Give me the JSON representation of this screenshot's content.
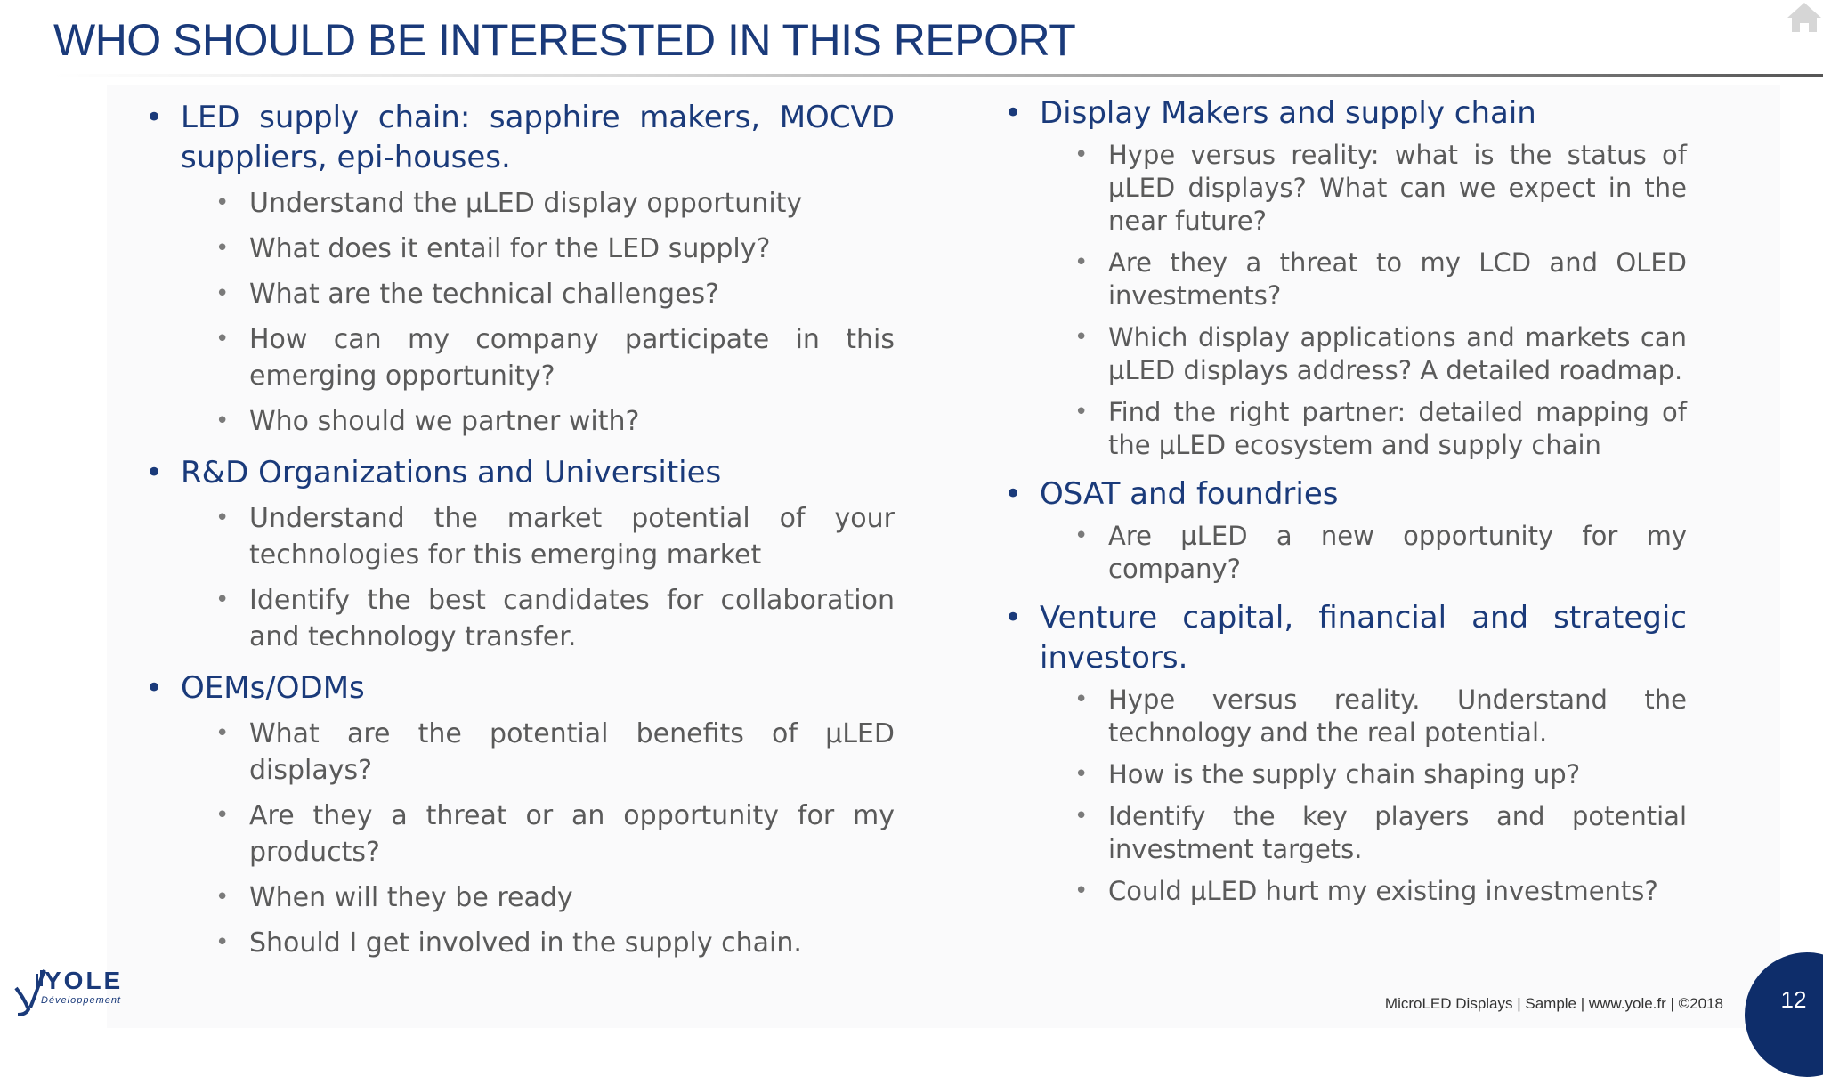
{
  "slide": {
    "title": "WHO SHOULD BE INTERESTED IN THIS REPORT",
    "page_number": "12",
    "footer": "MicroLED Displays | Sample | www.yole.fr | ©2018",
    "logo": {
      "word": "YOLE",
      "sub": "Développement"
    }
  },
  "left_column": [
    {
      "heading": "LED supply chain: sapphire makers, MOCVD suppliers, epi-houses.",
      "items": [
        "Understand the µLED display opportunity",
        "What does it entail for the LED supply?",
        "What are the technical challenges?",
        "How can my company participate in this emerging opportunity?",
        "Who should we partner with?"
      ]
    },
    {
      "heading": "R&D Organizations and Universities",
      "items": [
        "Understand the market potential of your technologies for this emerging market",
        "Identify the best candidates for collaboration and technology transfer."
      ]
    },
    {
      "heading": "OEMs/ODMs",
      "items": [
        "What are the potential benefits of µLED displays?",
        "Are they a threat or an opportunity for my products?",
        "When will they be ready",
        "Should I get involved in the supply chain."
      ]
    }
  ],
  "right_column": [
    {
      "heading": "Display Makers and supply chain",
      "items": [
        "Hype versus reality: what is the status of µLED displays? What can we expect in the near future?",
        "Are they a threat to my LCD and OLED investments?",
        "Which display applications and markets can µLED displays address? A detailed roadmap.",
        "Find the right partner: detailed mapping of the µLED ecosystem and supply chain"
      ]
    },
    {
      "heading": "OSAT and foundries",
      "items": [
        "Are µLED a new opportunity for my company?"
      ]
    },
    {
      "heading": "Venture capital, financial and strategic investors.",
      "items": [
        "Hype versus reality. Understand the technology and the real potential.",
        "How is the supply chain shaping up?",
        "Identify the key players and potential investment targets.",
        "Could µLED hurt my existing investments?"
      ]
    }
  ],
  "colors": {
    "title": "#1a3a7a",
    "body": "#5a5a5a",
    "page_circle": "#0e2d6a"
  },
  "icons": {
    "home": "home-icon",
    "bullet": "bullet-dot"
  }
}
